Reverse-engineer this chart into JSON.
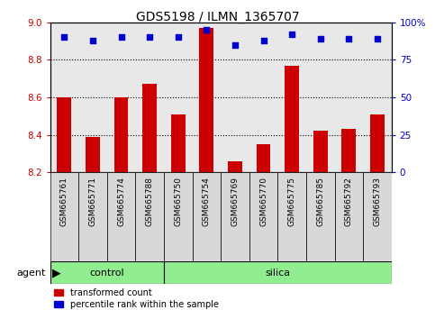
{
  "title": "GDS5198 / ILMN_1365707",
  "samples": [
    "GSM665761",
    "GSM665771",
    "GSM665774",
    "GSM665788",
    "GSM665750",
    "GSM665754",
    "GSM665769",
    "GSM665770",
    "GSM665775",
    "GSM665785",
    "GSM665792",
    "GSM665793"
  ],
  "transformed_count": [
    8.6,
    8.39,
    8.6,
    8.67,
    8.51,
    8.97,
    8.26,
    8.35,
    8.77,
    8.42,
    8.43,
    8.51
  ],
  "percentile_rank": [
    90,
    88,
    90,
    90,
    90,
    95,
    85,
    88,
    92,
    89,
    89,
    89
  ],
  "ylim_left": [
    8.2,
    9.0
  ],
  "ylim_right": [
    0,
    100
  ],
  "yticks_left": [
    8.2,
    8.4,
    8.6,
    8.8,
    9.0
  ],
  "yticks_right": [
    0,
    25,
    50,
    75,
    100
  ],
  "ytick_labels_right": [
    "0",
    "25",
    "50",
    "75",
    "100%"
  ],
  "bar_color": "#cc0000",
  "dot_color": "#0000cc",
  "bar_bottom": 8.2,
  "grid_lines": [
    8.4,
    8.6,
    8.8
  ],
  "control_count": 4,
  "silica_count": 8,
  "group_color": "#90ee90",
  "sample_box_color": "#d8d8d8",
  "legend_items": [
    {
      "label": "transformed count",
      "color": "#cc0000",
      "marker": "s"
    },
    {
      "label": "percentile rank within the sample",
      "color": "#0000cc",
      "marker": "s"
    }
  ],
  "tick_color_left": "#cc0000",
  "tick_color_right": "#0000cc",
  "plot_bg_color": "#e8e8e8"
}
